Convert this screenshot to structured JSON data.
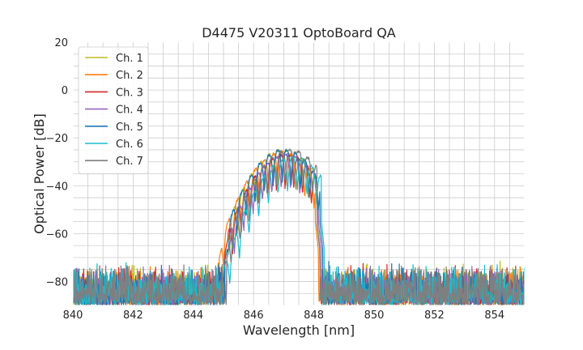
{
  "chart_data": {
    "type": "line",
    "title": "D4475 V20311 OptoBoard QA",
    "xlabel": "Wavelength [nm]",
    "ylabel": "Optical Power [dB]",
    "xlim": [
      840,
      855
    ],
    "ylim": [
      -90,
      20
    ],
    "xticks": [
      840,
      842,
      844,
      846,
      848,
      850,
      852,
      854
    ],
    "yticks": [
      20,
      0,
      -20,
      -40,
      -60,
      -80
    ],
    "xtick_labels": [
      "840",
      "842",
      "844",
      "846",
      "848",
      "850",
      "852",
      "854"
    ],
    "ytick_labels": [
      "20",
      "0",
      "−20",
      "−40",
      "−60",
      "−80"
    ],
    "grid": true,
    "legend_position": "top-left",
    "noise_floor": [
      -90,
      -72
    ],
    "series": [
      {
        "name": "Ch. 1",
        "color": "#bcbd22",
        "spectrum": {
          "edge_left": 845.0,
          "edge_right": 848.2,
          "peak_center": 847.0,
          "peak_level": -25,
          "fringe_period": 0.29,
          "fringe_phase": 0.0
        }
      },
      {
        "name": "Ch. 2",
        "color": "#ff7f0e",
        "spectrum": {
          "edge_left": 844.85,
          "edge_right": 848.15,
          "peak_center": 846.95,
          "peak_level": -26,
          "fringe_period": 0.3,
          "fringe_phase": 0.05
        }
      },
      {
        "name": "Ch. 3",
        "color": "#d62728",
        "spectrum": {
          "edge_left": 845.0,
          "edge_right": 848.2,
          "peak_center": 847.05,
          "peak_level": -27,
          "fringe_period": 0.29,
          "fringe_phase": 0.1
        }
      },
      {
        "name": "Ch. 4",
        "color": "#9467bd",
        "spectrum": {
          "edge_left": 845.1,
          "edge_right": 848.25,
          "peak_center": 847.1,
          "peak_level": -27,
          "fringe_period": 0.31,
          "fringe_phase": 0.15
        }
      },
      {
        "name": "Ch. 5",
        "color": "#1f77b4",
        "spectrum": {
          "edge_left": 845.05,
          "edge_right": 848.3,
          "peak_center": 847.0,
          "peak_level": -25,
          "fringe_period": 0.3,
          "fringe_phase": 0.2
        }
      },
      {
        "name": "Ch. 6",
        "color": "#17becf",
        "spectrum": {
          "edge_left": 844.95,
          "edge_right": 848.35,
          "peak_center": 847.3,
          "peak_level": -28,
          "fringe_period": 0.32,
          "fringe_phase": 0.25
        }
      },
      {
        "name": "Ch. 7",
        "color": "#7f7f7f",
        "spectrum": {
          "edge_left": 845.1,
          "edge_right": 848.2,
          "peak_center": 847.2,
          "peak_level": -25,
          "fringe_period": 0.3,
          "fringe_phase": 0.3
        }
      }
    ]
  }
}
